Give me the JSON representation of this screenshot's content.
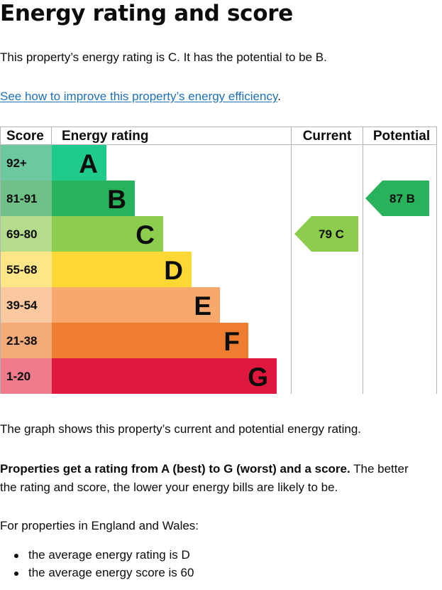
{
  "heading": "Energy rating and score",
  "intro": "This property’s energy rating is C. It has the potential to be B.",
  "improve_link": "See how to improve this property’s energy efficiency",
  "improve_suffix": ".",
  "chart_data": {
    "type": "table",
    "columns": [
      "Score",
      "Energy rating",
      "Current",
      "Potential"
    ],
    "bands": [
      {
        "letter": "A",
        "score_range": "92+",
        "color": "#1fcb8c",
        "score_color": "#6cc99f"
      },
      {
        "letter": "B",
        "score_range": "81-91",
        "color": "#27b25b",
        "score_color": "#6fc187"
      },
      {
        "letter": "C",
        "score_range": "69-80",
        "color": "#8dcd4d",
        "score_color": "#b4dc8c"
      },
      {
        "letter": "D",
        "score_range": "55-68",
        "color": "#fdd835",
        "score_color": "#fde687"
      },
      {
        "letter": "E",
        "score_range": "39-54",
        "color": "#f7a96d",
        "score_color": "#fac89f"
      },
      {
        "letter": "F",
        "score_range": "21-38",
        "color": "#ee7d30",
        "score_color": "#f4ab7a"
      },
      {
        "letter": "G",
        "score_range": "1-20",
        "color": "#e0173f",
        "score_color": "#ef7a8c"
      }
    ],
    "current": {
      "score": 79,
      "band": "C",
      "label": "79  C"
    },
    "potential": {
      "score": 87,
      "band": "B",
      "label": "87  B"
    }
  },
  "graph_description": "The graph shows this property’s current and potential energy rating.",
  "ratings_bold": "Properties get a rating from A (best) to G (worst) and a score.",
  "ratings_rest_1": " The better",
  "ratings_rest_2": "the rating and score, the lower your energy bills are likely to be.",
  "region_text": "For properties in England and Wales:",
  "averages": [
    "the average energy rating is D",
    "the average energy score is 60"
  ],
  "colors": {
    "link": "#1d70b8",
    "text": "#0b0c0c",
    "border": "#b1b4b6"
  }
}
